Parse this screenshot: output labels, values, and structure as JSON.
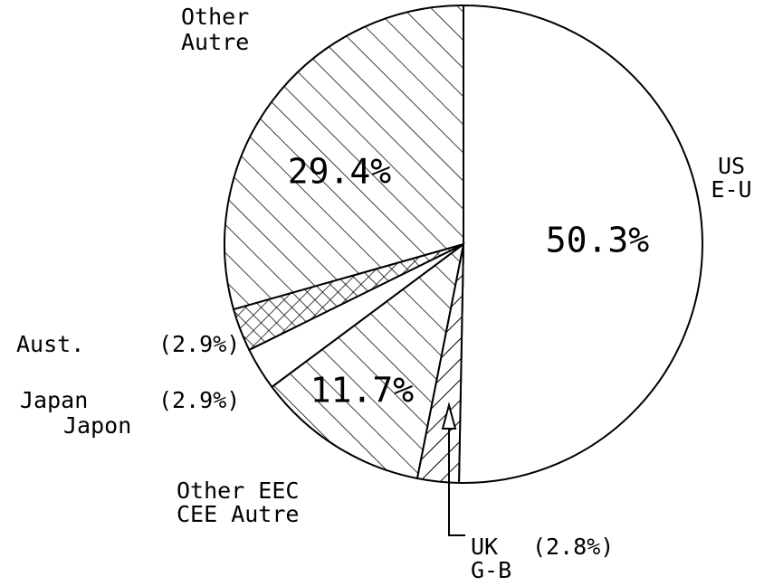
{
  "chart_data": {
    "type": "pie",
    "categories": [
      [
        "US",
        "E-U"
      ],
      [
        "UK",
        "G-B"
      ],
      [
        "Other EEC",
        "CEE Autre"
      ],
      [
        "Japan",
        "Japon"
      ],
      [
        "Aust."
      ],
      [
        "Other",
        "Autre"
      ]
    ],
    "values": [
      50.3,
      2.8,
      11.7,
      2.9,
      2.9,
      29.4
    ],
    "value_labels": [
      "50.3%",
      "(2.8%)",
      "11.7%",
      "(2.9%)",
      "(2.9%)",
      "29.4%"
    ],
    "patterns": [
      "none",
      "forward-hatch",
      "back-hatch",
      "none",
      "cross-hatch",
      "back-hatch"
    ]
  }
}
